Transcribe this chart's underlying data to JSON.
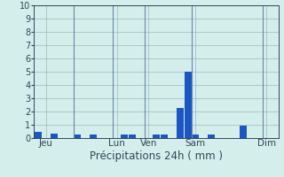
{
  "title": "",
  "xlabel": "Précipitations 24h ( mm )",
  "ylabel": "",
  "background_color": "#d4eeec",
  "bar_color": "#1a56c4",
  "grid_color": "#a0b8b8",
  "vline_color": "#6688aa",
  "ylim": [
    0,
    10
  ],
  "yticks": [
    0,
    1,
    2,
    3,
    4,
    5,
    6,
    7,
    8,
    9,
    10
  ],
  "values": [
    0.45,
    0.0,
    0.35,
    0.0,
    0.0,
    0.3,
    0.0,
    0.3,
    0.0,
    0.0,
    0.0,
    0.25,
    0.25,
    0.0,
    0.0,
    0.25,
    0.25,
    0.0,
    2.3,
    5.0,
    0.3,
    0.0,
    0.25,
    0.0,
    0.0,
    0.0,
    0.95,
    0.0,
    0.0,
    0.0,
    0.0
  ],
  "day_labels": [
    "Jeu",
    "Lun",
    "Ven",
    "Sam",
    "Dim"
  ],
  "day_positions": [
    1,
    10,
    14,
    20,
    29
  ],
  "vline_positions": [
    4.5,
    9.5,
    13.5,
    19.5,
    28.5
  ],
  "xlabel_fontsize": 8.5,
  "tick_fontsize": 7,
  "day_label_fontsize": 7.5
}
